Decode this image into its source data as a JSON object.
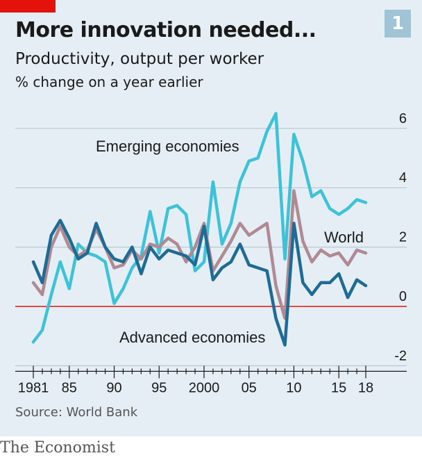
{
  "header": {
    "title": "More innovation needed...",
    "subtitle": "Productivity, output per worker",
    "unit": "% change on a year earlier",
    "badge": "1"
  },
  "footer": {
    "source": "Source: World Bank",
    "brand": "The Economist"
  },
  "colors": {
    "background": "#e4eef4",
    "emerging": "#3ec2d8",
    "advanced": "#1f6b95",
    "world": "#b08a93",
    "zero_line": "#e3120b",
    "grid": "#b8c7d1"
  },
  "chart_data": {
    "type": "line",
    "x": [
      1981,
      1982,
      1983,
      1984,
      1985,
      1986,
      1987,
      1988,
      1989,
      1990,
      1991,
      1992,
      1993,
      1994,
      1995,
      1996,
      1997,
      1998,
      1999,
      2000,
      2001,
      2002,
      2003,
      2004,
      2005,
      2006,
      2007,
      2008,
      2009,
      2010,
      2011,
      2012,
      2013,
      2014,
      2015,
      2016,
      2017,
      2018
    ],
    "x_ticks": [
      1981,
      1985,
      1990,
      1995,
      2000,
      2005,
      2010,
      2015,
      2018
    ],
    "x_tick_labels": [
      "1981",
      "85",
      "90",
      "95",
      "2000",
      "05",
      "10",
      "15",
      "18"
    ],
    "ylim": [
      -2,
      7
    ],
    "y_ticks": [
      -2,
      0,
      2,
      4,
      6
    ],
    "grid": true,
    "series": [
      {
        "name": "Emerging economies",
        "color": "#3ec2d8",
        "values": [
          -1.2,
          -0.8,
          0.4,
          1.5,
          0.6,
          2.1,
          1.8,
          1.7,
          1.5,
          0.1,
          0.6,
          1.3,
          1.7,
          3.2,
          1.8,
          3.3,
          3.4,
          3.1,
          1.2,
          1.5,
          4.2,
          2.1,
          2.8,
          4.2,
          4.9,
          5.0,
          5.9,
          6.5,
          1.6,
          5.8,
          4.9,
          3.7,
          3.9,
          3.3,
          3.1,
          3.3,
          3.6,
          3.5
        ]
      },
      {
        "name": "World",
        "color": "#b08a93",
        "values": [
          0.8,
          0.4,
          2.0,
          2.7,
          2.0,
          1.7,
          1.9,
          2.6,
          2.0,
          1.3,
          1.4,
          1.9,
          1.6,
          2.1,
          2.0,
          2.3,
          2.1,
          1.5,
          2.0,
          2.8,
          1.2,
          1.7,
          2.2,
          2.8,
          2.4,
          2.6,
          2.8,
          0.7,
          -0.4,
          3.9,
          2.2,
          1.5,
          1.9,
          1.7,
          1.8,
          1.4,
          1.9,
          1.8
        ]
      },
      {
        "name": "Advanced economies",
        "color": "#1f6b95",
        "values": [
          1.5,
          0.8,
          2.4,
          2.9,
          2.3,
          1.6,
          1.8,
          2.8,
          2.0,
          1.6,
          1.5,
          2.0,
          1.1,
          2.0,
          1.6,
          1.9,
          1.8,
          1.7,
          1.4,
          2.7,
          0.9,
          1.3,
          1.5,
          2.1,
          1.4,
          1.3,
          1.2,
          -0.4,
          -1.3,
          2.8,
          0.8,
          0.4,
          0.8,
          0.8,
          1.1,
          0.3,
          0.9,
          0.7
        ]
      }
    ],
    "labels": [
      {
        "text": "Emerging economies",
        "series": 0
      },
      {
        "text": "World",
        "series": 1
      },
      {
        "text": "Advanced economies",
        "series": 2
      }
    ]
  }
}
